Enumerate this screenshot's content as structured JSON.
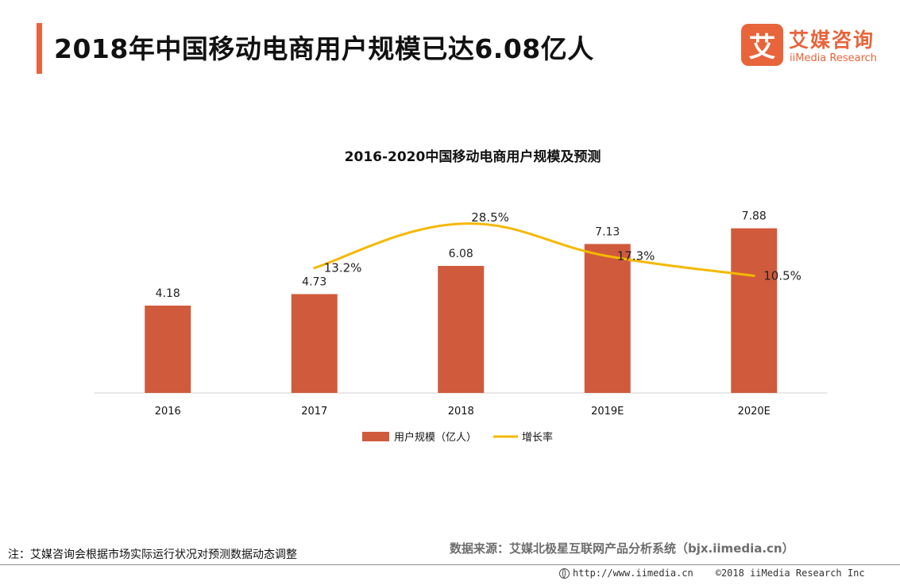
{
  "header": {
    "title": "2018年中国移动电商用户规模已达6.08亿人",
    "brand_cn": "艾媒咨询",
    "brand_en": "iiMedia Research",
    "brand_mark": "艾"
  },
  "colors": {
    "accent": "#e8643a",
    "bar": "#d05a3c",
    "line": "#f5b800",
    "axis": "#cfcfcf"
  },
  "chart_data": {
    "type": "bar",
    "title": "2016-2020中国移动电商用户规模及预测",
    "categories": [
      "2016",
      "2017",
      "2018",
      "2019E",
      "2020E"
    ],
    "series": [
      {
        "name": "用户规模（亿人）",
        "type": "bar",
        "values": [
          4.18,
          4.73,
          6.08,
          7.13,
          7.88
        ],
        "labels": [
          "4.18",
          "4.73",
          "6.08",
          "7.13",
          "7.88"
        ]
      },
      {
        "name": "增长率",
        "type": "line",
        "values": [
          null,
          13.2,
          28.5,
          17.3,
          10.5
        ],
        "labels": [
          "",
          "13.2%",
          "28.5%",
          "17.3%",
          "10.5%"
        ]
      }
    ],
    "ylim": [
      0,
      9
    ],
    "y2lim": [
      -30,
      35
    ],
    "grid": false,
    "legend": "bottom-center",
    "xlabel": "",
    "ylabel": ""
  },
  "footer": {
    "note": "注：艾媒咨询会根据市场实际运行状况对预测数据动态调整",
    "source": "数据来源：艾媒北极星互联网产品分析系统（bjx.iimedia.cn）",
    "url": "http://www.iimedia.cn",
    "copyright": "©2018  iiMedia Research  Inc"
  }
}
